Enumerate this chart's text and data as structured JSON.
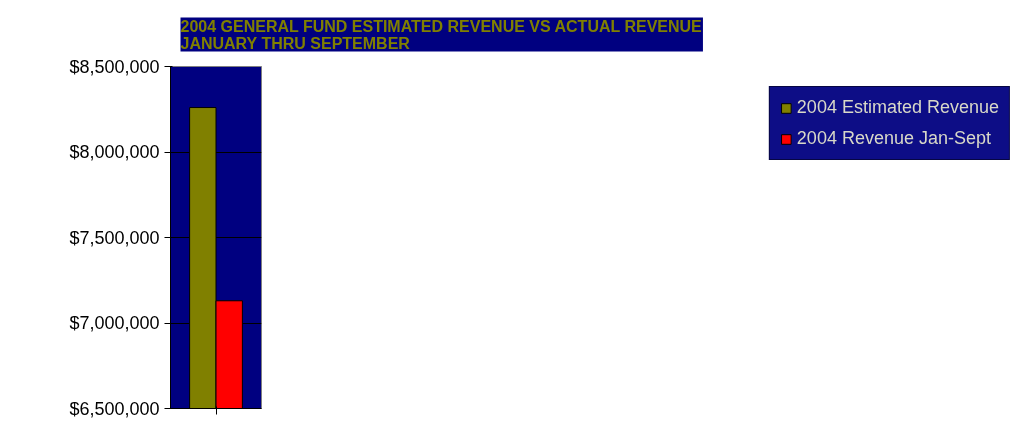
{
  "chart_data": {
    "type": "bar",
    "title": "2004 GENERAL FUND ESTIMATED REVENUE VS ACTUAL REVENUE\nJANUARY THRU SEPTEMBER",
    "categories": [
      null
    ],
    "series": [
      {
        "name": "2004 Estimated Revenue",
        "color": "#808000",
        "values": [
          8260000
        ]
      },
      {
        "name": "2004 Revenue Jan-Sept",
        "color": "#ff0000",
        "values": [
          7130000
        ]
      }
    ],
    "ylim": [
      6500000,
      8500000
    ],
    "yticks": [
      {
        "value": 6500000,
        "label": "$6,500,000"
      },
      {
        "value": 7000000,
        "label": "$7,000,000"
      },
      {
        "value": 7500000,
        "label": "$7,500,000"
      },
      {
        "value": 8000000,
        "label": "$8,000,000"
      },
      {
        "value": 8500000,
        "label": "$8,500,000"
      }
    ],
    "grid": "y",
    "legend": "right"
  }
}
